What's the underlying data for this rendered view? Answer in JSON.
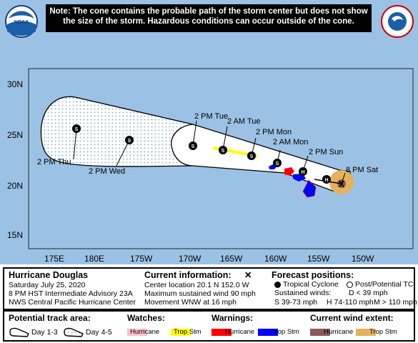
{
  "note": {
    "line1": "Note: The cone contains the probable path of the storm center but does not show",
    "line2": "the size of the storm. Hazardous conditions can occur outside of the cone."
  },
  "map": {
    "lat_labels": [
      "30N",
      "25N",
      "20N",
      "15N"
    ],
    "lon_labels": [
      "175E",
      "180E",
      "175W",
      "170W",
      "165W",
      "160W",
      "155W",
      "150W"
    ],
    "forecast_points": [
      {
        "label": "8 PM Sat",
        "symbol": "X"
      },
      {
        "label": "2 PM Sun",
        "symbol": "H"
      },
      {
        "label": "2 AM Mon",
        "symbol": "S"
      },
      {
        "label": "2 PM Mon",
        "symbol": "S"
      },
      {
        "label": "2 AM Tue",
        "symbol": "S"
      },
      {
        "label": "2 PM Tue",
        "symbol": "S"
      },
      {
        "label": "2 PM Wed",
        "symbol": "S"
      },
      {
        "label": "2 PM Thu",
        "symbol": "S"
      }
    ],
    "extra_symbol": "H",
    "colors": {
      "ocean": "#9bc1e4",
      "cone": "#ffffff",
      "cone_dots": "#79a6d0",
      "land_warning_hurricane": "#ff0000",
      "land_warning_tropstorm": "#0000ff",
      "wind_extent_tropstorm": "#e3b25a",
      "track_watch_tropstorm": "#ffff00"
    }
  },
  "info": {
    "storm_name": "Hurricane Douglas",
    "date": "Saturday July 25, 2020",
    "advisory": "8 PM HST Intermediate Advisory 23A",
    "center": "NWS Central Pacific Hurricane Center",
    "current_title": "Current information:",
    "current_symbol": "✕",
    "location": "Center location 20.1 N 152.0 W",
    "max_wind": "Maximum sustained wind 90 mph",
    "movement": "Movement WNW at 16 mph",
    "forecast_title": "Forecast positions:",
    "legend_tropical": "Tropical Cyclone",
    "legend_post": "Post/Potential TC",
    "sustained_label": "Sustained winds:",
    "d_cat": "D < 39 mph",
    "s_cat": "S 39-73 mph",
    "h_cat": "H 74-110 mph",
    "m_cat": "M > 110 mph"
  },
  "legend": {
    "track_title": "Potential track area:",
    "day13": "Day 1-3",
    "day45": "Day 4-5",
    "watches_title": "Watches:",
    "warnings_title": "Warnings:",
    "wind_title": "Current wind extent:",
    "hurricane": "Hurricane",
    "trop_stm": "Trop Stm",
    "colors": {
      "watch_hurricane": "#ffc0cb",
      "watch_trop": "#ffff00",
      "warn_hurricane": "#ff0000",
      "warn_trop": "#0000ff",
      "wind_hurricane": "#8b5a5a",
      "wind_trop": "#e3b25a"
    }
  },
  "logos": {
    "noaa": "NOAA",
    "nws": "NATIONAL WEATHER SERVICE"
  }
}
